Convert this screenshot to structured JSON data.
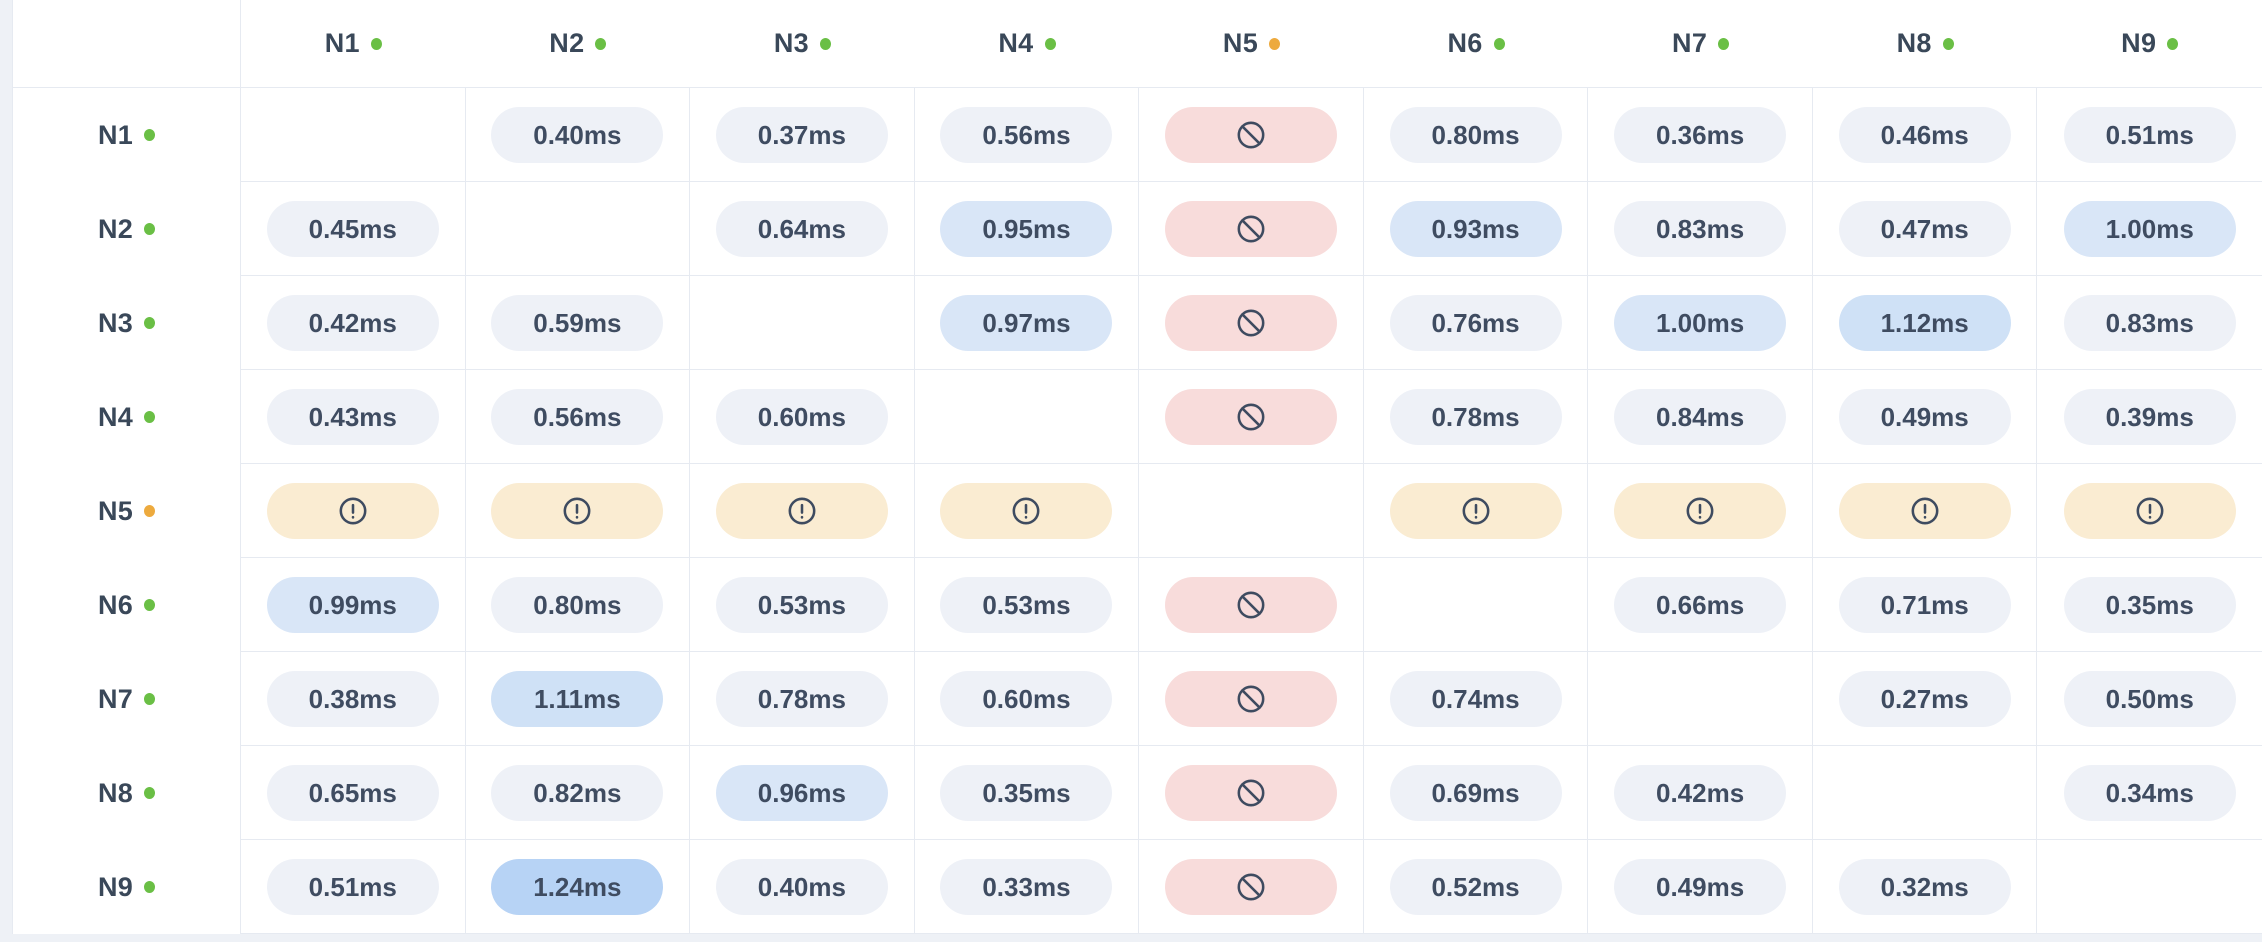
{
  "chart_data": {
    "type": "heatmap",
    "description": "node-to-node latency matrix",
    "unit": "ms",
    "value_format": "0.00ms",
    "rows": [
      "N1",
      "N2",
      "N3",
      "N4",
      "N5",
      "N6",
      "N7",
      "N8",
      "N9"
    ],
    "columns": [
      "N1",
      "N2",
      "N3",
      "N4",
      "N5",
      "N6",
      "N7",
      "N8",
      "N9"
    ],
    "row_status": [
      "green",
      "green",
      "green",
      "green",
      "amber",
      "green",
      "green",
      "green",
      "green"
    ],
    "column_status": [
      "green",
      "green",
      "green",
      "green",
      "amber",
      "green",
      "green",
      "green",
      "green"
    ],
    "cells": [
      [
        null,
        0.4,
        0.37,
        0.56,
        "ban",
        0.8,
        0.36,
        0.46,
        0.51
      ],
      [
        0.45,
        null,
        0.64,
        0.95,
        "ban",
        0.93,
        0.83,
        0.47,
        1.0
      ],
      [
        0.42,
        0.59,
        null,
        0.97,
        "ban",
        0.76,
        1.0,
        1.12,
        0.83
      ],
      [
        0.43,
        0.56,
        0.6,
        null,
        "ban",
        0.78,
        0.84,
        0.49,
        0.39
      ],
      [
        "alert",
        "alert",
        "alert",
        "alert",
        null,
        "alert",
        "alert",
        "alert",
        "alert"
      ],
      [
        0.99,
        0.8,
        0.53,
        0.53,
        "ban",
        null,
        0.66,
        0.71,
        0.35
      ],
      [
        0.38,
        1.11,
        0.78,
        0.6,
        "ban",
        0.74,
        null,
        0.27,
        0.5
      ],
      [
        0.65,
        0.82,
        0.96,
        0.35,
        "ban",
        0.69,
        0.42,
        null,
        0.34
      ],
      [
        0.51,
        1.24,
        0.4,
        0.33,
        "ban",
        0.52,
        0.49,
        0.32,
        null
      ]
    ]
  },
  "colors": {
    "page_bg": "#eef1f6",
    "card_bg": "#ffffff",
    "grid_line": "#e6eaf1",
    "header_text": "#3a4859",
    "value_text": "#3f4c61",
    "icon_stroke": "#3e4b60",
    "dot_green": "#6abf45",
    "dot_amber": "#edaa3e",
    "pill_default": "#eef1f7",
    "pill_ban": "#f8dcdb",
    "pill_alert": "#faecd2",
    "latency_bands": [
      {
        "max": 0.92,
        "bg": "#eef1f7"
      },
      {
        "max": 1.05,
        "bg": "#d9e6f7"
      },
      {
        "max": 1.18,
        "bg": "#cfe1f6"
      },
      {
        "max": 99,
        "bg": "#b7d3f5"
      }
    ]
  },
  "icons": {
    "ban": "ban-icon",
    "alert": "alert-circle-icon",
    "status": "status-dot"
  }
}
